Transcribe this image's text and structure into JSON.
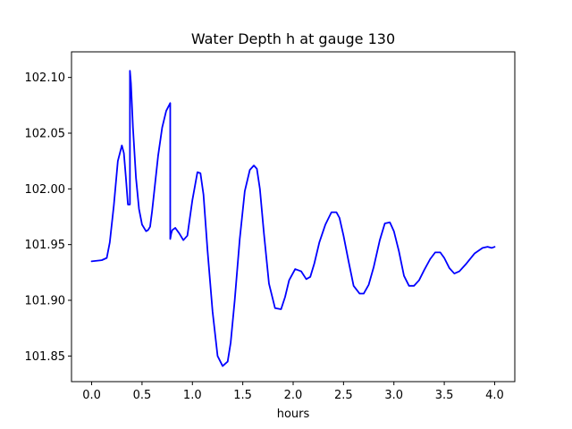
{
  "chart_data": {
    "type": "line",
    "title": "Water Depth h at gauge 130",
    "xlabel": "hours",
    "ylabel": "",
    "xlim": [
      -0.2,
      4.2
    ],
    "ylim": [
      101.827,
      102.123
    ],
    "xticks": [
      0.0,
      0.5,
      1.0,
      1.5,
      2.0,
      2.5,
      3.0,
      3.5,
      4.0
    ],
    "xtick_labels": [
      "0.0",
      "0.5",
      "1.0",
      "1.5",
      "2.0",
      "2.5",
      "3.0",
      "3.5",
      "4.0"
    ],
    "yticks": [
      101.85,
      101.9,
      101.95,
      102.0,
      102.05,
      102.1
    ],
    "ytick_labels": [
      "101.85",
      "101.90",
      "101.95",
      "102.00",
      "102.05",
      "102.10"
    ],
    "grid": false,
    "series": [
      {
        "color": "#0000ff",
        "x": [
          0.0,
          0.1,
          0.15,
          0.18,
          0.22,
          0.26,
          0.3,
          0.32,
          0.34,
          0.36,
          0.38,
          0.38,
          0.39,
          0.41,
          0.44,
          0.47,
          0.5,
          0.54,
          0.56,
          0.58,
          0.6,
          0.63,
          0.66,
          0.7,
          0.74,
          0.78,
          0.78,
          0.79,
          0.8,
          0.83,
          0.87,
          0.91,
          0.95,
          1.0,
          1.05,
          1.08,
          1.11,
          1.15,
          1.2,
          1.25,
          1.3,
          1.35,
          1.38,
          1.42,
          1.47,
          1.52,
          1.57,
          1.61,
          1.64,
          1.67,
          1.71,
          1.76,
          1.82,
          1.88,
          1.92,
          1.96,
          2.02,
          2.08,
          2.13,
          2.17,
          2.21,
          2.26,
          2.32,
          2.38,
          2.43,
          2.46,
          2.5,
          2.55,
          2.6,
          2.66,
          2.7,
          2.75,
          2.8,
          2.86,
          2.91,
          2.96,
          3.0,
          3.05,
          3.1,
          3.15,
          3.2,
          3.25,
          3.3,
          3.36,
          3.41,
          3.46,
          3.5,
          3.55,
          3.6,
          3.65,
          3.72,
          3.8,
          3.88,
          3.93,
          3.97,
          4.0
        ],
        "y": [
          101.935,
          101.936,
          101.938,
          101.952,
          101.985,
          102.025,
          102.039,
          102.032,
          102.01,
          101.986,
          101.986,
          102.106,
          102.095,
          102.055,
          102.01,
          101.982,
          101.968,
          101.962,
          101.963,
          101.966,
          101.98,
          102.005,
          102.03,
          102.055,
          102.07,
          102.077,
          101.955,
          101.96,
          101.963,
          101.965,
          101.96,
          101.954,
          101.958,
          101.99,
          102.015,
          102.014,
          101.995,
          101.945,
          101.89,
          101.85,
          101.841,
          101.845,
          101.862,
          101.9,
          101.955,
          101.998,
          102.017,
          102.021,
          102.018,
          102.0,
          101.96,
          101.915,
          101.893,
          101.892,
          101.903,
          101.918,
          101.928,
          101.926,
          101.919,
          101.921,
          101.933,
          101.952,
          101.968,
          101.979,
          101.979,
          101.974,
          101.958,
          101.935,
          101.913,
          101.906,
          101.906,
          101.914,
          101.93,
          101.954,
          101.969,
          101.97,
          101.962,
          101.944,
          101.922,
          101.913,
          101.913,
          101.918,
          101.927,
          101.937,
          101.943,
          101.943,
          101.938,
          101.929,
          101.924,
          101.926,
          101.933,
          101.942,
          101.947,
          101.948,
          101.947,
          101.948
        ]
      }
    ]
  }
}
